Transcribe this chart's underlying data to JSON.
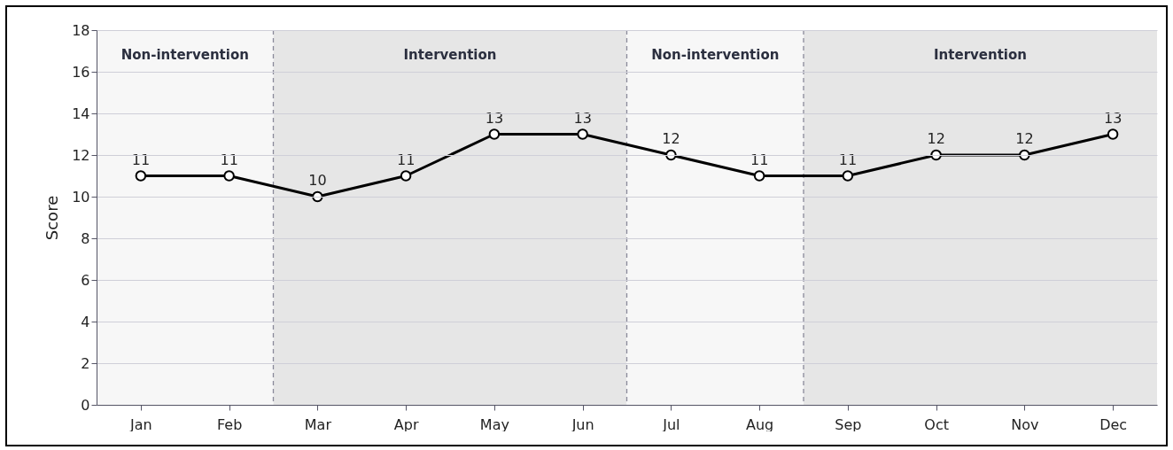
{
  "chart_data": {
    "type": "line",
    "ylabel": "Score",
    "categories": [
      "Jan",
      "Feb",
      "Mar",
      "Apr",
      "May",
      "Jun",
      "Jul",
      "Aug",
      "Sep",
      "Oct",
      "Nov",
      "Dec"
    ],
    "series": [
      {
        "color": "#000000",
        "values": [
          11,
          11,
          10,
          11,
          13,
          13,
          12,
          11,
          11,
          12,
          12,
          13
        ]
      }
    ],
    "ylim": [
      0,
      18
    ],
    "yticks": [
      0,
      2,
      4,
      6,
      8,
      10,
      12,
      14,
      16,
      18
    ],
    "bands": [
      {
        "axis": "x",
        "from": "Jan",
        "to": "Feb",
        "label": "Non-intervention",
        "color": "#f7f7f7"
      },
      {
        "axis": "x",
        "from": "Mar",
        "to": "Jun",
        "label": "Intervention",
        "color": "#e6e6e6"
      },
      {
        "axis": "x",
        "from": "Jul",
        "to": "Aug",
        "label": "Non-intervention",
        "color": "#f7f7f7"
      },
      {
        "axis": "x",
        "from": "Sep",
        "to": "Dec",
        "label": "Intervention",
        "color": "#e6e6e6"
      }
    ],
    "grid": "y",
    "marker": "circle",
    "line_style": "solid",
    "data_labels": true
  }
}
